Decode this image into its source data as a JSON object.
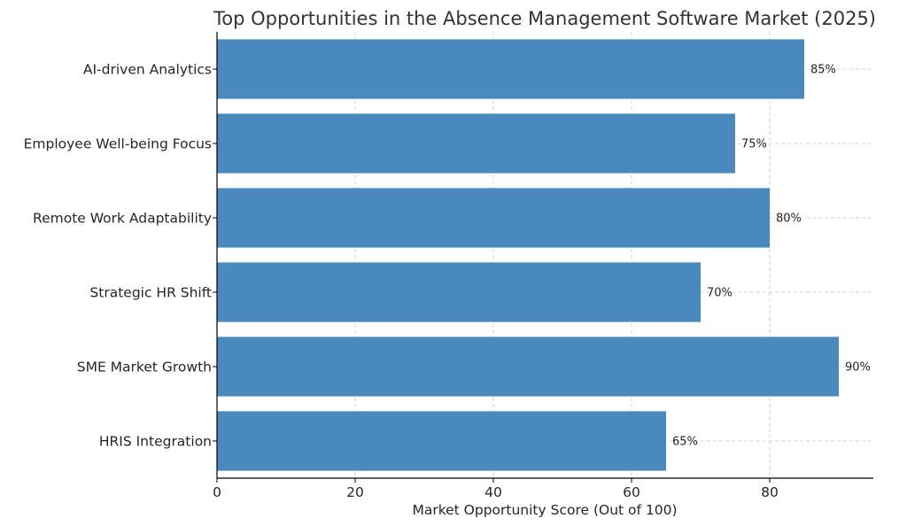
{
  "chart_data": {
    "type": "bar",
    "orientation": "horizontal",
    "title": "Top Opportunities in the Absence Management Software Market (2025)",
    "xlabel": "Market Opportunity Score (Out of 100)",
    "ylabel": "",
    "categories": [
      "AI-driven Analytics",
      "Employee Well-being Focus",
      "Remote Work Adaptability",
      "Strategic HR Shift",
      "SME Market Growth",
      "HRIS Integration"
    ],
    "values": [
      85,
      75,
      80,
      70,
      90,
      65
    ],
    "data_labels": [
      "85%",
      "75%",
      "80%",
      "70%",
      "90%",
      "65%"
    ],
    "xlim": [
      0,
      95
    ],
    "xticks": [
      0,
      20,
      40,
      60,
      80
    ],
    "grid": true,
    "bar_color": "#4a89bd"
  }
}
